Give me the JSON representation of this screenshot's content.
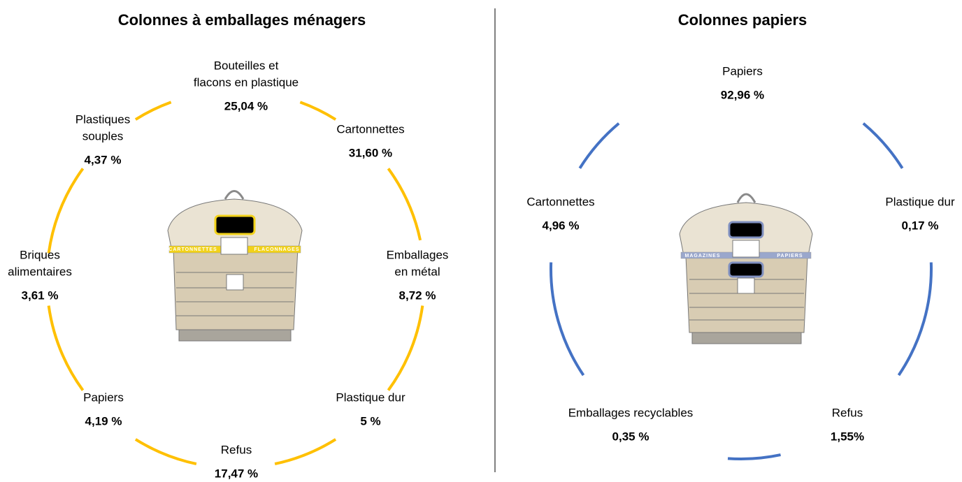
{
  "panels": [
    {
      "title": "Colonnes à emballages ménagers",
      "bin_labels": [
        "CARTONNETTES",
        "FLACONNAGES"
      ],
      "items": [
        {
          "lines": [
            "Bouteilles et",
            "flacons en plastique"
          ],
          "value": "25,04 %"
        },
        {
          "lines": [
            "Plastiques",
            "souples"
          ],
          "value": "4,37 %"
        },
        {
          "lines": [
            "Cartonnettes"
          ],
          "value": "31,60 %"
        },
        {
          "lines": [
            "Briques",
            "alimentaires"
          ],
          "value": "3,61 %"
        },
        {
          "lines": [
            "Emballages",
            "en métal"
          ],
          "value": "8,72 %"
        },
        {
          "lines": [
            "Papiers"
          ],
          "value": "4,19 %"
        },
        {
          "lines": [
            "Plastique dur"
          ],
          "value": "5 %"
        },
        {
          "lines": [
            "Refus"
          ],
          "value": "17,47 %"
        }
      ]
    },
    {
      "title": "Colonnes papiers",
      "bin_labels": [
        "MAGAZINES",
        "PAPIERS"
      ],
      "items": [
        {
          "lines": [
            "Papiers"
          ],
          "value": "92,96 %"
        },
        {
          "lines": [
            "Cartonnettes"
          ],
          "value": "4,96 %"
        },
        {
          "lines": [
            "Plastique dur"
          ],
          "value": "0,17 %"
        },
        {
          "lines": [
            "Emballages recyclables"
          ],
          "value": "0,35 %"
        },
        {
          "lines": [
            "Refus"
          ],
          "value": "1,55%"
        }
      ]
    }
  ]
}
